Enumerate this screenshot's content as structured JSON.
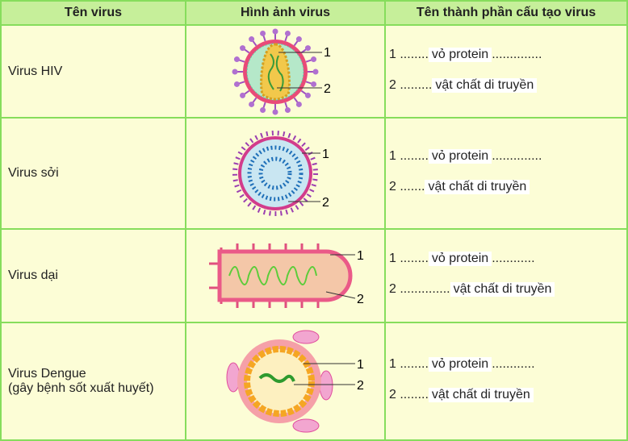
{
  "headers": [
    "Tên virus",
    "Hình ảnh virus",
    "Tên thành phần cấu tạo virus"
  ],
  "rows": [
    {
      "name": "Virus HIV",
      "label1": "1",
      "label2": "2",
      "ans1_num": "1",
      "ans1_pre": "........",
      "ans1": "vỏ protein",
      "ans1_post": "..............",
      "ans2_num": "2",
      "ans2_pre": ".........",
      "ans2": "vật chất di truyền",
      "ans2_post": ""
    },
    {
      "name": "Virus sởi",
      "label1": "1",
      "label2": "2",
      "ans1_num": "1",
      "ans1_pre": "........",
      "ans1": "vỏ protein",
      "ans1_post": "..............",
      "ans2_num": "2",
      "ans2_pre": ".......",
      "ans2": "vật chất di truyền",
      "ans2_post": ""
    },
    {
      "name": "Virus dại",
      "label1": "1",
      "label2": "2",
      "ans1_num": "1",
      "ans1_pre": "........",
      "ans1": "vỏ protein",
      "ans1_post": "............",
      "ans2_num": "2",
      "ans2_pre": "..............",
      "ans2": "vật chất di truyền",
      "ans2_post": ""
    },
    {
      "name": "Virus Dengue",
      "name2": "(gây bệnh sốt xuất huyết)",
      "label1": "1",
      "label2": "2",
      "ans1_num": "1",
      "ans1_pre": "........",
      "ans1": "vỏ protein",
      "ans1_post": "............",
      "ans2_num": "2",
      "ans2_pre": "........",
      "ans2": "vật chất di truyền",
      "ans2_post": ""
    }
  ]
}
